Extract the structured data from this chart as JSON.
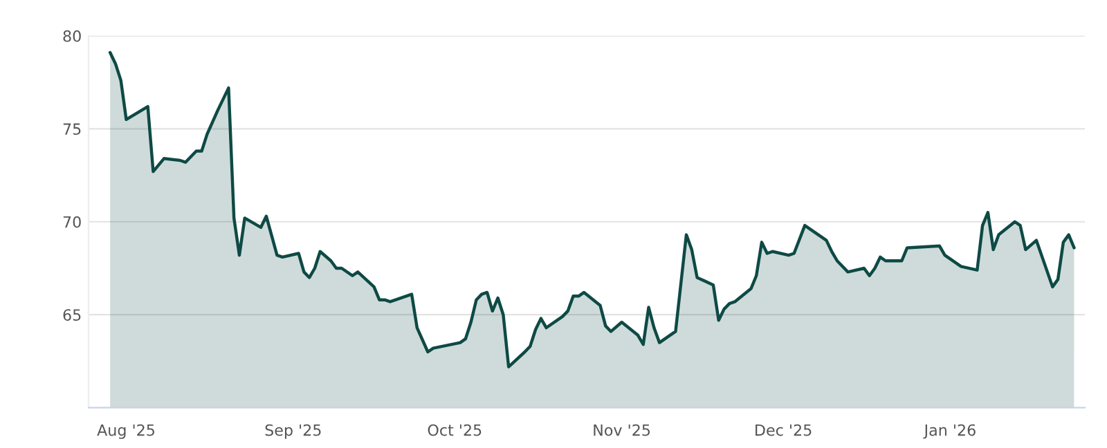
{
  "chart_data": {
    "type": "area",
    "x": [
      "2025-07-29",
      "2025-07-30",
      "2025-07-31",
      "2025-08-01",
      "2025-08-05",
      "2025-08-06",
      "2025-08-08",
      "2025-08-11",
      "2025-08-12",
      "2025-08-14",
      "2025-08-15",
      "2025-08-16",
      "2025-08-18",
      "2025-08-20",
      "2025-08-21",
      "2025-08-22",
      "2025-08-23",
      "2025-08-26",
      "2025-08-27",
      "2025-08-29",
      "2025-08-30",
      "2025-09-02",
      "2025-09-03",
      "2025-09-04",
      "2025-09-05",
      "2025-09-06",
      "2025-09-08",
      "2025-09-09",
      "2025-09-10",
      "2025-09-12",
      "2025-09-13",
      "2025-09-16",
      "2025-09-17",
      "2025-09-18",
      "2025-09-19",
      "2025-09-23",
      "2025-09-24",
      "2025-09-26",
      "2025-09-27",
      "2025-10-02",
      "2025-10-03",
      "2025-10-04",
      "2025-10-05",
      "2025-10-06",
      "2025-10-07",
      "2025-10-08",
      "2025-10-09",
      "2025-10-10",
      "2025-10-11",
      "2025-10-14",
      "2025-10-15",
      "2025-10-16",
      "2025-10-17",
      "2025-10-18",
      "2025-10-21",
      "2025-10-22",
      "2025-10-23",
      "2025-10-24",
      "2025-10-25",
      "2025-10-28",
      "2025-10-29",
      "2025-10-30",
      "2025-11-01",
      "2025-11-04",
      "2025-11-05",
      "2025-11-06",
      "2025-11-07",
      "2025-11-08",
      "2025-11-11",
      "2025-11-13",
      "2025-11-14",
      "2025-11-15",
      "2025-11-18",
      "2025-11-19",
      "2025-11-20",
      "2025-11-21",
      "2025-11-22",
      "2025-11-25",
      "2025-11-26",
      "2025-11-27",
      "2025-11-28",
      "2025-11-29",
      "2025-12-02",
      "2025-12-03",
      "2025-12-05",
      "2025-12-09",
      "2025-12-10",
      "2025-12-11",
      "2025-12-13",
      "2025-12-16",
      "2025-12-17",
      "2025-12-18",
      "2025-12-19",
      "2025-12-20",
      "2025-12-23",
      "2025-12-24",
      "2025-12-30",
      "2025-12-31",
      "2026-01-03",
      "2026-01-06",
      "2026-01-07",
      "2026-01-08",
      "2026-01-09",
      "2026-01-10",
      "2026-01-13",
      "2026-01-14",
      "2026-01-15",
      "2026-01-17",
      "2026-01-20",
      "2026-01-21",
      "2026-01-22",
      "2026-01-23",
      "2026-01-24"
    ],
    "series": [
      {
        "color": "#0e4a45",
        "values": [
          79.1,
          78.5,
          77.6,
          75.5,
          76.2,
          72.7,
          73.4,
          73.3,
          73.2,
          73.8,
          73.8,
          74.7,
          76.0,
          77.2,
          70.2,
          68.2,
          70.2,
          69.7,
          70.3,
          68.2,
          68.1,
          68.3,
          67.3,
          67.0,
          67.5,
          68.4,
          67.9,
          67.5,
          67.5,
          67.1,
          67.3,
          66.5,
          65.8,
          65.8,
          65.7,
          66.1,
          64.3,
          63.0,
          63.2,
          63.5,
          63.7,
          64.6,
          65.8,
          66.1,
          66.2,
          65.2,
          65.9,
          65.0,
          62.2,
          63.0,
          63.3,
          64.2,
          64.8,
          64.3,
          64.9,
          65.2,
          66.0,
          66.0,
          66.2,
          65.5,
          64.4,
          64.1,
          64.6,
          63.9,
          63.4,
          65.4,
          64.3,
          63.5,
          64.1,
          69.3,
          68.5,
          67.0,
          66.6,
          64.7,
          65.3,
          65.6,
          65.7,
          66.4,
          67.1,
          68.9,
          68.3,
          68.4,
          68.2,
          68.3,
          69.8,
          69.0,
          68.4,
          67.9,
          67.3,
          67.5,
          67.1,
          67.5,
          68.1,
          67.9,
          67.9,
          68.6,
          68.7,
          68.2,
          67.6,
          67.4,
          69.8,
          70.5,
          68.5,
          69.3,
          70.0,
          69.8,
          68.5,
          69.0,
          66.5,
          66.9,
          68.9,
          69.3,
          68.6
        ]
      }
    ],
    "xlim": [
      "2025-07-25",
      "2026-01-26"
    ],
    "xticks": [
      {
        "value": "2025-08-01",
        "label": "Aug '25"
      },
      {
        "value": "2025-09-01",
        "label": "Sep '25"
      },
      {
        "value": "2025-10-01",
        "label": "Oct '25"
      },
      {
        "value": "2025-11-01",
        "label": "Nov '25"
      },
      {
        "value": "2025-12-01",
        "label": "Dec '25"
      },
      {
        "value": "2026-01-01",
        "label": "Jan '26"
      }
    ],
    "ylim": [
      60,
      80
    ],
    "yticks": [
      65,
      70,
      75,
      80
    ],
    "grid": "y",
    "legend": false
  }
}
